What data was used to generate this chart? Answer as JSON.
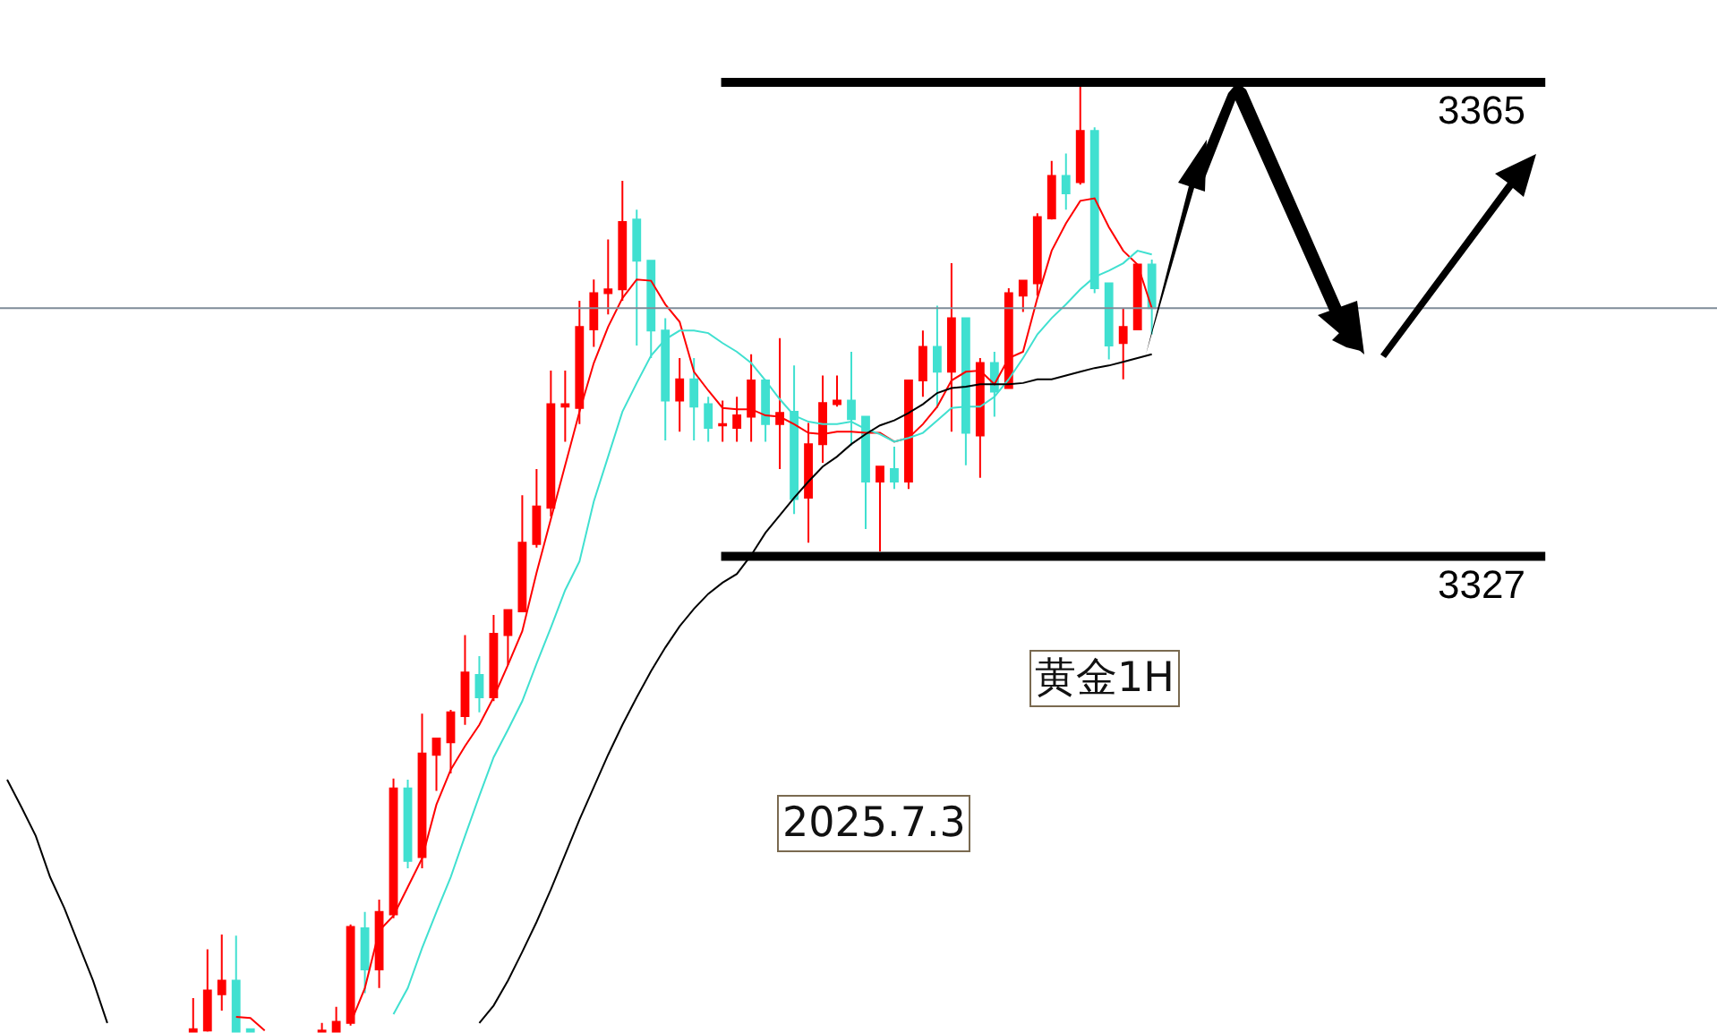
{
  "chart_data": {
    "type": "candlestick",
    "categories": [
      null,
      null,
      null,
      null,
      null,
      null,
      null,
      null,
      null,
      null,
      null,
      null,
      null,
      null,
      null,
      null,
      null,
      null,
      null,
      null,
      null,
      null,
      null,
      null,
      null,
      null,
      null,
      null,
      null,
      null,
      null,
      null,
      null,
      null,
      null,
      null,
      null,
      null,
      null,
      null,
      null,
      null,
      null,
      null,
      null,
      null,
      null,
      null,
      null,
      null,
      null,
      null,
      null,
      null,
      null,
      null,
      null,
      null,
      null,
      null,
      null,
      null,
      null,
      null,
      null,
      null,
      null,
      null,
      null,
      null,
      null,
      null,
      null,
      null,
      null,
      null,
      null,
      null,
      null,
      null,
      null,
      null,
      null,
      null,
      null,
      null,
      null,
      null,
      null,
      null,
      null,
      null,
      null,
      null,
      null,
      null,
      null,
      null,
      null,
      null,
      null,
      null,
      null,
      null,
      null,
      null,
      null,
      null,
      null,
      null,
      null,
      null,
      null,
      null,
      null,
      null,
      null,
      null,
      null,
      null
    ],
    "ohlc": [
      null,
      null,
      null,
      null,
      null,
      null,
      null,
      null,
      null,
      null,
      null,
      null,
      null,
      [
        3288.9,
        3291.6,
        3288.9,
        3289.1
      ],
      [
        3289.0,
        3295.5,
        3288.9,
        3292.2
      ],
      [
        3291.9,
        3296.7,
        3290.6,
        3293.0
      ],
      [
        3293.0,
        3296.6,
        3288.9,
        3288.9
      ],
      [
        3289.1,
        3289.1,
        3288.9,
        3288.9
      ],
      null,
      null,
      null,
      null,
      [
        3288.9,
        3289.6,
        3288.9,
        3289.0
      ],
      [
        3288.9,
        3290.9,
        3288.9,
        3289.7
      ],
      [
        3289.6,
        3297.5,
        3289.4,
        3297.3
      ],
      [
        3297.2,
        3298.5,
        3292.0,
        3293.9
      ],
      [
        3293.9,
        3299.5,
        3292.4,
        3298.5
      ],
      [
        3298.3,
        3309.2,
        3298.0,
        3308.4
      ],
      [
        3308.4,
        3309.1,
        3302.0,
        3302.6
      ],
      [
        3302.9,
        3314.4,
        3302.0,
        3311.2
      ],
      [
        3311.1,
        3312.4,
        3308.2,
        3312.4
      ],
      [
        3312.1,
        3314.7,
        3309.6,
        3314.5
      ],
      [
        3314.2,
        3320.7,
        3313.5,
        3317.7
      ],
      [
        3317.5,
        3319.0,
        3314.5,
        3315.7
      ],
      [
        3315.7,
        3322.3,
        3315.4,
        3320.8
      ],
      [
        3320.7,
        3322.7,
        3318.3,
        3322.7
      ],
      [
        3322.6,
        3331.9,
        3322.6,
        3328.1
      ],
      [
        3328.0,
        3334.0,
        3327.7,
        3331.0
      ],
      [
        3330.9,
        3341.9,
        3330.2,
        3339.2
      ],
      [
        3339.0,
        3341.9,
        3336.2,
        3339.2
      ],
      [
        3338.9,
        3347.5,
        3337.6,
        3345.4
      ],
      [
        3345.2,
        3349.2,
        3343.8,
        3348.1
      ],
      [
        3348.1,
        3352.4,
        3346.4,
        3348.4
      ],
      [
        3348.4,
        3357.1,
        3347.5,
        3353.8
      ],
      [
        3354.0,
        3354.8,
        3343.9,
        3350.7
      ],
      [
        3350.7,
        3350.7,
        3342.9,
        3345.1
      ],
      [
        3345.1,
        3346.1,
        3336.3,
        3339.5
      ],
      [
        3339.5,
        3342.9,
        3337.0,
        3341.2
      ],
      [
        3341.2,
        3342.9,
        3336.3,
        3339.0
      ],
      [
        3339.2,
        3339.8,
        3336.2,
        3337.3
      ],
      [
        3337.5,
        3339.5,
        3336.2,
        3337.6
      ],
      [
        3337.3,
        3339.8,
        3336.2,
        3338.3
      ],
      [
        3338.2,
        3343.2,
        3336.2,
        3341.1
      ],
      [
        3341.1,
        3341.2,
        3336.2,
        3337.6
      ],
      [
        3337.6,
        3344.5,
        3334.0,
        3338.5
      ],
      [
        3338.6,
        3342.3,
        3330.4,
        3331.6
      ],
      [
        3331.7,
        3337.7,
        3328.1,
        3336.0
      ],
      [
        3336.0,
        3341.5,
        3334.5,
        3339.3
      ],
      [
        3339.2,
        3341.5,
        3339.0,
        3339.5
      ],
      [
        3339.5,
        3343.4,
        3335.9,
        3338.0
      ],
      [
        3338.2,
        3338.2,
        3329.2,
        3333.0
      ],
      [
        3333.0,
        3334.2,
        3327.4,
        3334.2
      ],
      [
        3334.0,
        3335.8,
        3332.4,
        3333.0
      ],
      [
        3333.0,
        3341.1,
        3332.4,
        3341.1
      ],
      [
        3341.1,
        3345.1,
        3339.8,
        3343.8
      ],
      [
        3343.8,
        3347.1,
        3338.9,
        3341.8
      ],
      [
        3341.8,
        3350.5,
        3337.0,
        3346.1
      ],
      [
        3346.1,
        3346.1,
        3334.3,
        3336.9
      ],
      [
        3336.7,
        3342.9,
        3333.3,
        3342.5
      ],
      [
        3342.5,
        3343.4,
        3338.2,
        3340.2
      ],
      [
        3340.5,
        3348.5,
        3340.5,
        3348.1
      ],
      [
        3347.9,
        3349.1,
        3346.6,
        3349.1
      ],
      [
        3348.9,
        3354.5,
        3347.9,
        3354.2
      ],
      [
        3354.1,
        3358.7,
        3354.0,
        3357.5
      ],
      [
        3357.5,
        3359.3,
        3354.8,
        3356.1
      ],
      [
        3357.0,
        3364.9,
        3356.8,
        3361.1
      ],
      [
        3361.1,
        3361.4,
        3348.1,
        3348.5
      ],
      [
        3348.9,
        3348.9,
        3342.8,
        3343.9
      ],
      [
        3344.1,
        3346.9,
        3341.2,
        3345.4
      ],
      [
        3345.2,
        3350.4,
        3345.2,
        3350.4
      ],
      [
        3350.4,
        3350.8,
        3344.8,
        3346.9
      ],
      null,
      null,
      null,
      null,
      null,
      null,
      null,
      null,
      null,
      null,
      null,
      null,
      null,
      null,
      null,
      null,
      null,
      null,
      null,
      null,
      null,
      null,
      null,
      null,
      null,
      null,
      null,
      null,
      null,
      null,
      null,
      null,
      null,
      null,
      null,
      null,
      null,
      null,
      null
    ],
    "series": [
      {
        "type": "line",
        "color": "#ff0000",
        "values": [
          null,
          null,
          null,
          null,
          null,
          null,
          null,
          null,
          null,
          null,
          null,
          null,
          null,
          null,
          null,
          null,
          3290.1,
          3290.0,
          3289.0,
          null,
          null,
          null,
          null,
          null,
          3289.6,
          3292.4,
          3297.0,
          3298.2,
          3300.5,
          3302.8,
          3307.1,
          3309.9,
          3311.8,
          3313.5,
          3315.7,
          3318.3,
          3321.0,
          3325.7,
          3330.0,
          3334.3,
          3338.6,
          3342.5,
          3345.4,
          3347.7,
          3349.2,
          3349.1,
          3347.2,
          3345.8,
          3341.8,
          3340.3,
          3338.9,
          3338.8,
          3338.8,
          3338.3,
          3338.2,
          3337.6,
          3336.9,
          3336.8,
          3337.0,
          3337.0,
          3336.9,
          3336.9,
          3336.2,
          3336.5,
          3337.6,
          3339.0,
          3341.1,
          3341.8,
          3341.9,
          3340.8,
          3342.9,
          3343.4,
          3347.7,
          3351.5,
          3353.7,
          3355.5,
          3355.7,
          3353.4,
          3351.5,
          3350.4,
          3346.9,
          null,
          null,
          null,
          null,
          null,
          null,
          null,
          null,
          null,
          null,
          null,
          null,
          null,
          null,
          null,
          null,
          null,
          null,
          null,
          null,
          null,
          null,
          null,
          null,
          null,
          null,
          null,
          null,
          null,
          null,
          null,
          null,
          null,
          null,
          null,
          null,
          null,
          null,
          null
        ]
      },
      {
        "type": "line",
        "color": "#40e0d0",
        "values": [
          null,
          null,
          null,
          null,
          null,
          null,
          null,
          null,
          null,
          null,
          null,
          null,
          null,
          null,
          null,
          null,
          null,
          null,
          null,
          null,
          null,
          null,
          null,
          null,
          null,
          null,
          null,
          3290.3,
          3292.4,
          3295.6,
          3298.5,
          3301.3,
          3304.6,
          3307.8,
          3310.9,
          3313.1,
          3315.4,
          3318.4,
          3321.3,
          3324.3,
          3326.6,
          3331.4,
          3335.0,
          3338.6,
          3340.9,
          3343.1,
          3344.4,
          3345.1,
          3345.1,
          3344.9,
          3344.1,
          3343.4,
          3342.5,
          3341.1,
          3339.6,
          3338.3,
          3337.8,
          3337.6,
          3337.6,
          3337.8,
          3337.2,
          3336.8,
          3336.2,
          3336.5,
          3336.9,
          3337.9,
          3338.9,
          3339.0,
          3339.0,
          3339.8,
          3341.2,
          3342.9,
          3344.8,
          3346.1,
          3347.2,
          3348.4,
          3349.4,
          3349.9,
          3350.5,
          3351.5,
          3351.2,
          null,
          null,
          null,
          null,
          null,
          null,
          null,
          null,
          null,
          null,
          null,
          null,
          null,
          null,
          null,
          null,
          null,
          null,
          null,
          null,
          null,
          null,
          null,
          null,
          null,
          null,
          null,
          null,
          null,
          null,
          null,
          null,
          null,
          null,
          null,
          null,
          null,
          null,
          null
        ]
      },
      {
        "type": "line",
        "color": "#000000",
        "values": [
          3309.1,
          3306.9,
          3304.6,
          3301.3,
          3298.8,
          3295.9,
          3293.0,
          3289.6,
          null,
          null,
          null,
          null,
          null,
          null,
          null,
          null,
          null,
          null,
          null,
          null,
          null,
          null,
          null,
          null,
          null,
          null,
          null,
          null,
          null,
          null,
          null,
          null,
          null,
          3289.6,
          3291.0,
          3293.0,
          3295.3,
          3297.7,
          3300.3,
          3303.1,
          3305.9,
          3308.5,
          3311.1,
          3313.5,
          3315.7,
          3317.8,
          3319.7,
          3321.4,
          3322.8,
          3324.0,
          3324.9,
          3325.6,
          3327.1,
          3328.9,
          3330.3,
          3331.7,
          3333.0,
          3334.2,
          3335.0,
          3336.0,
          3336.8,
          3337.5,
          3337.9,
          3338.5,
          3339.2,
          3340.1,
          3340.5,
          3340.6,
          3340.8,
          3340.8,
          3340.8,
          3340.9,
          3341.2,
          3341.2,
          3341.5,
          3341.8,
          3342.1,
          3342.3,
          3342.6,
          3342.9,
          3343.2,
          null,
          null,
          null,
          null,
          null,
          null,
          null,
          null,
          null,
          null,
          null,
          null,
          null,
          null,
          null,
          null,
          null,
          null,
          null,
          null,
          null,
          null,
          null,
          null,
          null,
          null,
          null,
          null,
          null,
          null,
          null,
          null,
          null,
          null,
          null,
          null,
          null,
          null,
          null
        ]
      }
    ],
    "ylim": [
      3288.8,
      3371.6
    ],
    "tick_labels": false,
    "ref_lines": [
      {
        "axis": "y",
        "value": 3365,
        "label": "3365",
        "color": "#000000"
      },
      {
        "axis": "y",
        "value": 3327,
        "label": "3327",
        "color": "#000000"
      },
      {
        "axis": "y",
        "value": 3346.9,
        "label": null,
        "color": "#7f8c99"
      }
    ],
    "annotations": [
      "黄金1H",
      "2025.7.3"
    ]
  }
}
